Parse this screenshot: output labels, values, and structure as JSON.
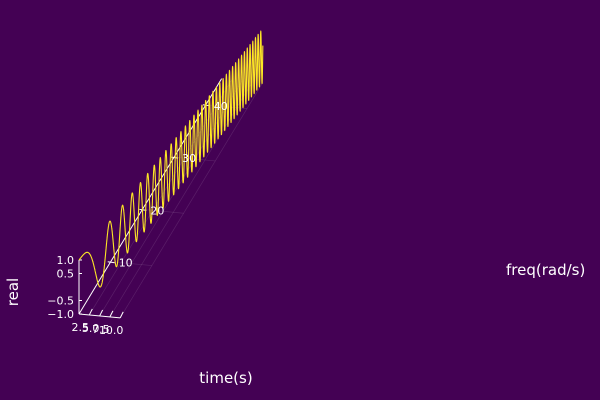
{
  "chart_data": {
    "type": "line",
    "style": {
      "background": "#440154",
      "line_color": "#fde725",
      "axis_color": "#ffffff",
      "grid": true
    },
    "axes": {
      "time": {
        "label": "time(s)",
        "range": [
          0,
          10
        ],
        "ticks": [
          2.5,
          5.0,
          7.5,
          10.0
        ],
        "tick_labels": [
          "2.5",
          "5.0",
          "7.5",
          "10.0"
        ]
      },
      "freq": {
        "label": "freq(rad/s)",
        "range": [
          0,
          45
        ],
        "ticks": [
          10,
          20,
          30,
          40
        ],
        "tick_labels": [
          "10",
          "20",
          "30",
          "40"
        ]
      },
      "real": {
        "label": "real",
        "range": [
          -1.0,
          1.0
        ],
        "ticks": [
          -1.0,
          -0.5,
          0.5,
          1.0
        ],
        "tick_labels": [
          "−1.0",
          "−0.5",
          "0.5",
          "1.0"
        ]
      }
    },
    "series": [
      {
        "description": "chirp: real = cos(phase(t)), freq = 4.5*t for t in 0..10 (two segments)",
        "t_start": 0,
        "t_end": 10,
        "freq_per_second": 4.5,
        "segments": [
          [
            0,
            5
          ],
          [
            5,
            10
          ]
        ]
      }
    ]
  }
}
